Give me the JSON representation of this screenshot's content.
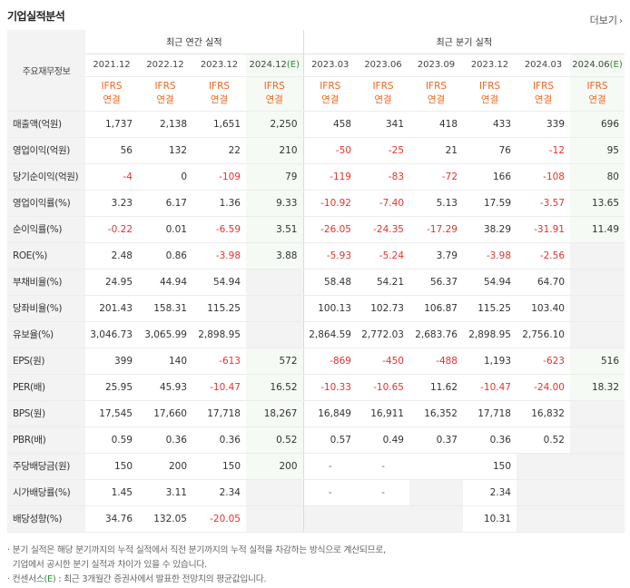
{
  "header": {
    "title": "기업실적분석",
    "more_label": "더보기"
  },
  "table": {
    "corner_label": "주요재무정보",
    "group_annual": "최근 연간 실적",
    "group_quarter": "최근 분기 실적",
    "periods": [
      "2021.12",
      "2022.12",
      "2023.12",
      "2024.12",
      "2023.03",
      "2023.06",
      "2023.09",
      "2023.12",
      "2024.03",
      "2024.06"
    ],
    "estimate_mark": "(E)",
    "ifrs_top": "IFRS",
    "ifrs_bottom": "연결",
    "rows": [
      {
        "label": "매출액(억원)",
        "values": [
          "1,737",
          "2,138",
          "1,651",
          "2,250",
          "458",
          "341",
          "418",
          "433",
          "339",
          "696"
        ]
      },
      {
        "label": "영업이익(억원)",
        "values": [
          "56",
          "132",
          "22",
          "210",
          "-50",
          "-25",
          "21",
          "76",
          "-12",
          "95"
        ]
      },
      {
        "label": "당기순이익(억원)",
        "values": [
          "-4",
          "0",
          "-109",
          "79",
          "-119",
          "-83",
          "-72",
          "166",
          "-108",
          "80"
        ]
      },
      {
        "label": "영업이익률(%)",
        "values": [
          "3.23",
          "6.17",
          "1.36",
          "9.33",
          "-10.92",
          "-7.40",
          "5.13",
          "17.59",
          "-3.57",
          "13.65"
        ]
      },
      {
        "label": "순이익률(%)",
        "values": [
          "-0.22",
          "0.01",
          "-6.59",
          "3.51",
          "-26.05",
          "-24.35",
          "-17.29",
          "38.29",
          "-31.91",
          "11.49"
        ]
      },
      {
        "label": "ROE(%)",
        "values": [
          "2.48",
          "0.86",
          "-3.98",
          "3.88",
          "-5.93",
          "-5.24",
          "3.79",
          "-3.98",
          "-2.56",
          ""
        ]
      },
      {
        "label": "부채비율(%)",
        "values": [
          "24.95",
          "44.94",
          "54.94",
          "",
          "58.48",
          "54.21",
          "56.37",
          "54.94",
          "64.70",
          ""
        ]
      },
      {
        "label": "당좌비율(%)",
        "values": [
          "201.43",
          "158.31",
          "115.25",
          "",
          "100.13",
          "102.73",
          "106.87",
          "115.25",
          "103.40",
          ""
        ]
      },
      {
        "label": "유보율(%)",
        "values": [
          "3,046.73",
          "3,065.99",
          "2,898.95",
          "",
          "2,864.59",
          "2,772.03",
          "2,683.76",
          "2,898.95",
          "2,756.10",
          ""
        ]
      },
      {
        "label": "EPS(원)",
        "values": [
          "399",
          "140",
          "-613",
          "572",
          "-869",
          "-450",
          "-488",
          "1,193",
          "-623",
          "516"
        ]
      },
      {
        "label": "PER(배)",
        "values": [
          "25.95",
          "45.93",
          "-10.47",
          "16.52",
          "-10.33",
          "-10.65",
          "11.62",
          "-10.47",
          "-24.00",
          "18.32"
        ]
      },
      {
        "label": "BPS(원)",
        "values": [
          "17,545",
          "17,660",
          "17,718",
          "18,267",
          "16,849",
          "16,911",
          "16,352",
          "17,718",
          "16,832",
          ""
        ]
      },
      {
        "label": "PBR(배)",
        "values": [
          "0.59",
          "0.36",
          "0.36",
          "0.52",
          "0.57",
          "0.49",
          "0.37",
          "0.36",
          "0.52",
          ""
        ]
      },
      {
        "label": "주당배당금(원)",
        "values": [
          "150",
          "200",
          "150",
          "200",
          "-",
          "-",
          "",
          "150",
          "",
          ""
        ]
      },
      {
        "label": "시가배당률(%)",
        "values": [
          "1.45",
          "3.11",
          "2.34",
          "",
          "-",
          "-",
          "",
          "2.34",
          "",
          ""
        ]
      },
      {
        "label": "배당성향(%)",
        "values": [
          "34.76",
          "132.05",
          "-20.05",
          "",
          "",
          "",
          "",
          "10.31",
          "",
          ""
        ]
      }
    ]
  },
  "notes": {
    "line1": "분기 실적은 해당 분기까지의 누적 실적에서 직전 분기까지의 누적 실적을 차감하는 방식으로 계산되므로,",
    "line2": "기업에서 공시한 분기 실적과 차이가 있을 수 있습니다.",
    "line3a": "컨센서스",
    "line3b": "(E)",
    "line3c": ": 최근 3개월간 증권사에서 발표한 전망치의 평균값입니다."
  },
  "colors": {
    "ifrs": "#f26522",
    "negative": "#e8312f",
    "estimate_bg": "#f5faf5",
    "estimate_mark": "#2d8b3a",
    "label_bg": "#f3f3f3"
  }
}
